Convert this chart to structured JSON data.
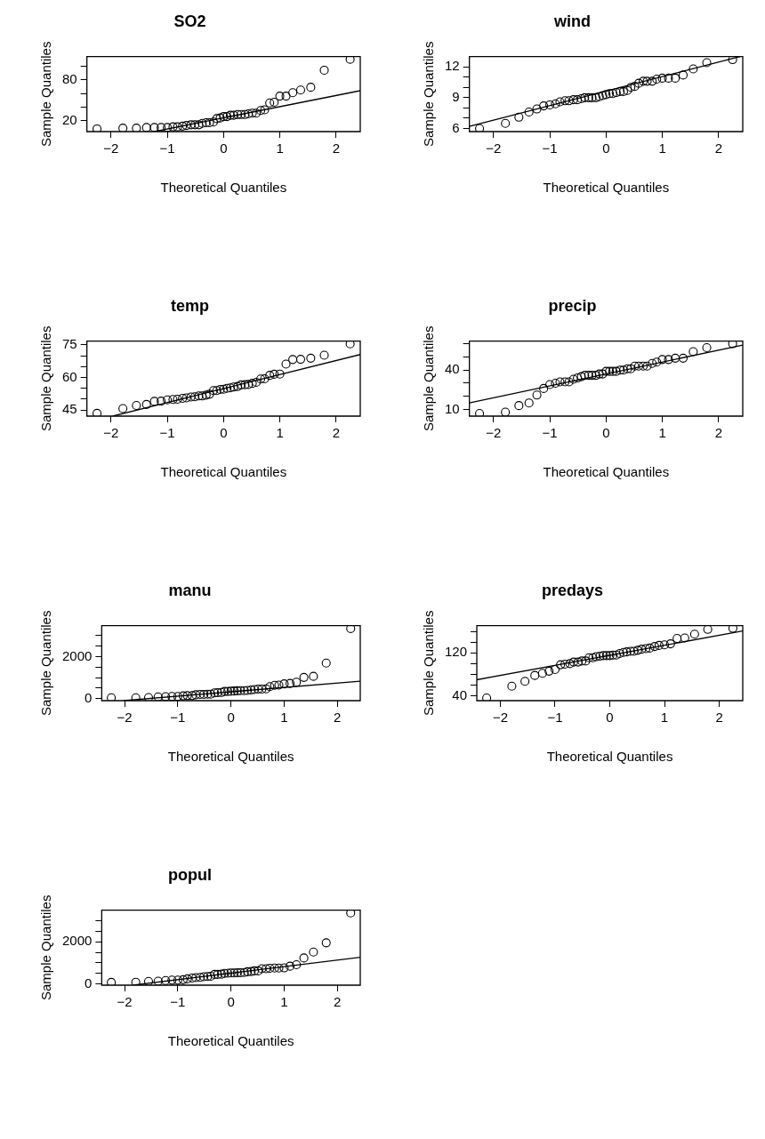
{
  "chart_data": [
    {
      "type": "scatter",
      "title": "SO2",
      "xlabel": "Theoretical Quantiles",
      "ylabel": "Sample Quantiles",
      "xlim": [
        -2.43,
        2.43
      ],
      "ylim": [
        4,
        114
      ],
      "xticks": [
        -2,
        -1,
        0,
        1,
        2
      ],
      "yticks": [
        20,
        {
          "value": 40,
          "label": null
        },
        {
          "value": 60,
          "label": null
        },
        80,
        {
          "value": 100,
          "label": null
        }
      ],
      "x": [
        -2.25,
        -1.79,
        -1.55,
        -1.37,
        -1.23,
        -1.11,
        -1.0,
        -0.9,
        -0.82,
        -0.73,
        -0.66,
        -0.58,
        -0.51,
        -0.44,
        -0.38,
        -0.31,
        -0.25,
        -0.18,
        -0.12,
        -0.06,
        0,
        0.06,
        0.12,
        0.18,
        0.25,
        0.31,
        0.38,
        0.44,
        0.51,
        0.58,
        0.66,
        0.73,
        0.82,
        0.9,
        1.0,
        1.11,
        1.23,
        1.37,
        1.55,
        1.79,
        2.25
      ],
      "series": [
        {
          "marker": "circle",
          "color": "#000000",
          "values": [
            8,
            9,
            9,
            10,
            10,
            10,
            10,
            11,
            11,
            12,
            13,
            14,
            14,
            14,
            16,
            17,
            17,
            18,
            23,
            24,
            26,
            26,
            28,
            28,
            29,
            29,
            29,
            30,
            31,
            31,
            35,
            36,
            46,
            47,
            56,
            56,
            61,
            65,
            69,
            94,
            110
          ]
        },
        {
          "type": "line",
          "color": "#000000",
          "x": [
            -1.23,
            2.43
          ],
          "values": [
            4,
            64
          ]
        }
      ]
    },
    {
      "type": "scatter",
      "title": "wind",
      "xlabel": "Theoretical Quantiles",
      "ylabel": "Sample Quantiles",
      "xlim": [
        -2.43,
        2.43
      ],
      "ylim": [
        5.7,
        13.0
      ],
      "xticks": [
        -2,
        -1,
        0,
        1,
        2
      ],
      "yticks": [
        6,
        {
          "value": 7,
          "label": null
        },
        {
          "value": 8,
          "label": null
        },
        9,
        {
          "value": 10,
          "label": null
        },
        {
          "value": 11,
          "label": null
        },
        12
      ],
      "x": [
        -2.25,
        -1.79,
        -1.55,
        -1.37,
        -1.23,
        -1.11,
        -1.0,
        -0.9,
        -0.82,
        -0.73,
        -0.66,
        -0.58,
        -0.51,
        -0.44,
        -0.38,
        -0.31,
        -0.25,
        -0.18,
        -0.12,
        -0.06,
        0,
        0.06,
        0.12,
        0.18,
        0.25,
        0.31,
        0.38,
        0.44,
        0.51,
        0.58,
        0.66,
        0.73,
        0.82,
        0.9,
        1.0,
        1.11,
        1.23,
        1.37,
        1.55,
        1.79,
        2.25
      ],
      "series": [
        {
          "marker": "circle",
          "color": "#000000",
          "values": [
            6.0,
            6.5,
            7.1,
            7.6,
            7.9,
            8.2,
            8.3,
            8.4,
            8.6,
            8.7,
            8.7,
            8.8,
            8.8,
            8.9,
            9.0,
            9.0,
            9.0,
            9.0,
            9.1,
            9.2,
            9.3,
            9.4,
            9.4,
            9.5,
            9.6,
            9.6,
            9.7,
            10.0,
            10.1,
            10.4,
            10.6,
            10.6,
            10.6,
            10.8,
            10.9,
            10.9,
            10.9,
            11.2,
            11.8,
            12.4,
            12.7
          ]
        },
        {
          "type": "line",
          "color": "#000000",
          "x": [
            -2.43,
            2.38
          ],
          "values": [
            6.2,
            13.0
          ]
        }
      ]
    },
    {
      "type": "scatter",
      "title": "temp",
      "xlabel": "Theoretical Quantiles",
      "ylabel": "Sample Quantiles",
      "xlim": [
        -2.43,
        2.43
      ],
      "ylim": [
        42.2,
        76.8
      ],
      "xticks": [
        -2,
        -1,
        0,
        1,
        2
      ],
      "yticks": [
        45,
        {
          "value": 50,
          "label": null
        },
        {
          "value": 55,
          "label": null
        },
        60,
        {
          "value": 65,
          "label": null
        },
        {
          "value": 70,
          "label": null
        },
        75
      ],
      "x": [
        -2.25,
        -1.79,
        -1.55,
        -1.37,
        -1.23,
        -1.11,
        -1.0,
        -0.9,
        -0.82,
        -0.73,
        -0.66,
        -0.58,
        -0.51,
        -0.44,
        -0.38,
        -0.31,
        -0.25,
        -0.18,
        -0.12,
        -0.06,
        0,
        0.06,
        0.12,
        0.18,
        0.25,
        0.31,
        0.38,
        0.44,
        0.51,
        0.58,
        0.66,
        0.73,
        0.82,
        0.9,
        1.0,
        1.11,
        1.23,
        1.37,
        1.55,
        1.79,
        2.25
      ],
      "series": [
        {
          "marker": "circle",
          "color": "#000000",
          "values": [
            43.5,
            45.7,
            47.1,
            47.6,
            49.0,
            49.1,
            49.7,
            49.9,
            50.0,
            50.4,
            50.6,
            51.0,
            51.1,
            51.5,
            51.5,
            51.9,
            52.3,
            54.0,
            54.0,
            54.5,
            54.6,
            55.0,
            55.2,
            55.6,
            55.9,
            56.6,
            56.7,
            56.8,
            57.3,
            57.8,
            59.3,
            59.4,
            61.0,
            61.5,
            61.6,
            66.2,
            68.3,
            68.4,
            68.9,
            70.3,
            75.5
          ]
        },
        {
          "type": "line",
          "color": "#000000",
          "x": [
            -1.97,
            2.43
          ],
          "values": [
            42.2,
            70.6
          ]
        }
      ]
    },
    {
      "type": "scatter",
      "title": "precip",
      "xlabel": "Theoretical Quantiles",
      "ylabel": "Sample Quantiles",
      "xlim": [
        -2.43,
        2.43
      ],
      "ylim": [
        5,
        62
      ],
      "xticks": [
        -2,
        -1,
        0,
        1,
        2
      ],
      "yticks": [
        10,
        {
          "value": 20,
          "label": null
        },
        {
          "value": 30,
          "label": null
        },
        40,
        {
          "value": 50,
          "label": null
        },
        {
          "value": 60,
          "label": null
        }
      ],
      "x": [
        -2.25,
        -1.79,
        -1.55,
        -1.37,
        -1.23,
        -1.11,
        -1.0,
        -0.9,
        -0.82,
        -0.73,
        -0.66,
        -0.58,
        -0.51,
        -0.44,
        -0.38,
        -0.31,
        -0.25,
        -0.18,
        -0.12,
        -0.06,
        0,
        0.06,
        0.12,
        0.18,
        0.25,
        0.31,
        0.38,
        0.44,
        0.51,
        0.58,
        0.66,
        0.73,
        0.82,
        0.9,
        1.0,
        1.11,
        1.23,
        1.37,
        1.55,
        1.79,
        2.25
      ],
      "series": [
        {
          "marker": "circle",
          "color": "#000000",
          "values": [
            7,
            8,
            13,
            15,
            21,
            26,
            29,
            30,
            31,
            31,
            31,
            33,
            34,
            35,
            36,
            36,
            36,
            36,
            37,
            37,
            39,
            39,
            39,
            39,
            40,
            40,
            41,
            41,
            43,
            43,
            43,
            43,
            45,
            46,
            48,
            48,
            49,
            49,
            54,
            57,
            60
          ]
        },
        {
          "type": "line",
          "color": "#000000",
          "x": [
            -2.43,
            2.43
          ],
          "values": [
            15,
            59
          ]
        }
      ]
    },
    {
      "type": "scatter",
      "title": "manu",
      "xlabel": "Theoretical Quantiles",
      "ylabel": "Sample Quantiles",
      "xlim": [
        -2.43,
        2.43
      ],
      "ylim": [
        -100,
        3480
      ],
      "xticks": [
        -2,
        -1,
        0,
        1,
        2
      ],
      "yticks": [
        0,
        {
          "value": 500,
          "label": null
        },
        {
          "value": 1000,
          "label": null
        },
        {
          "value": 1500,
          "label": null
        },
        2000,
        {
          "value": 2500,
          "label": null
        },
        {
          "value": 3000,
          "label": null
        }
      ],
      "x": [
        -2.25,
        -1.79,
        -1.55,
        -1.37,
        -1.23,
        -1.11,
        -1.0,
        -0.9,
        -0.82,
        -0.73,
        -0.66,
        -0.58,
        -0.51,
        -0.44,
        -0.38,
        -0.31,
        -0.25,
        -0.18,
        -0.12,
        -0.06,
        0,
        0.06,
        0.12,
        0.18,
        0.25,
        0.31,
        0.38,
        0.44,
        0.51,
        0.58,
        0.66,
        0.73,
        0.82,
        0.9,
        1.0,
        1.11,
        1.23,
        1.37,
        1.55,
        1.79,
        2.25
      ],
      "series": [
        {
          "marker": "circle",
          "color": "#000000",
          "values": [
            40,
            40,
            50,
            80,
            90,
            100,
            100,
            130,
            140,
            140,
            180,
            200,
            200,
            210,
            210,
            270,
            280,
            290,
            340,
            340,
            350,
            360,
            370,
            380,
            380,
            390,
            410,
            430,
            450,
            450,
            460,
            570,
            630,
            640,
            700,
            720,
            780,
            1010,
            1060,
            1690,
            3340
          ]
        },
        {
          "type": "line",
          "color": "#000000",
          "x": [
            -2.02,
            2.43
          ],
          "values": [
            -100,
            830
          ]
        }
      ]
    },
    {
      "type": "scatter",
      "title": "predays",
      "xlabel": "Theoretical Quantiles",
      "ylabel": "Sample Quantiles",
      "xlim": [
        -2.43,
        2.43
      ],
      "ylim": [
        31,
        171
      ],
      "xticks": [
        -2,
        -1,
        0,
        1,
        2
      ],
      "yticks": [
        40,
        {
          "value": 60,
          "label": null
        },
        {
          "value": 80,
          "label": null
        },
        {
          "value": 100,
          "label": null
        },
        120,
        {
          "value": 140,
          "label": null
        },
        {
          "value": 160,
          "label": null
        }
      ],
      "x": [
        -2.25,
        -1.79,
        -1.55,
        -1.37,
        -1.23,
        -1.11,
        -1.0,
        -0.9,
        -0.82,
        -0.73,
        -0.66,
        -0.58,
        -0.51,
        -0.44,
        -0.38,
        -0.31,
        -0.25,
        -0.18,
        -0.12,
        -0.06,
        0,
        0.06,
        0.12,
        0.18,
        0.25,
        0.31,
        0.38,
        0.44,
        0.51,
        0.58,
        0.66,
        0.73,
        0.82,
        0.9,
        1.0,
        1.11,
        1.23,
        1.37,
        1.55,
        1.79,
        2.25
      ],
      "series": [
        {
          "marker": "circle",
          "color": "#000000",
          "values": [
            36,
            58,
            67,
            78,
            82,
            86,
            89,
            98,
            99,
            100,
            103,
            103,
            105,
            105,
            111,
            111,
            113,
            114,
            115,
            115,
            115,
            116,
            116,
            119,
            121,
            122,
            123,
            123,
            125,
            127,
            128,
            129,
            132,
            134,
            135,
            137,
            147,
            148,
            155,
            164,
            166
          ]
        },
        {
          "type": "line",
          "color": "#000000",
          "x": [
            -2.43,
            2.43
          ],
          "values": [
            70,
            161
          ]
        }
      ]
    },
    {
      "type": "scatter",
      "title": "popul",
      "xlabel": "Theoretical Quantiles",
      "ylabel": "Sample Quantiles",
      "xlim": [
        -2.43,
        2.43
      ],
      "ylim": [
        -60,
        3500
      ],
      "xticks": [
        -2,
        -1,
        0,
        1,
        2
      ],
      "yticks": [
        0,
        {
          "value": 500,
          "label": null
        },
        {
          "value": 1000,
          "label": null
        },
        {
          "value": 1500,
          "label": null
        },
        2000,
        {
          "value": 2500,
          "label": null
        },
        {
          "value": 3000,
          "label": null
        }
      ],
      "x": [
        -2.25,
        -1.79,
        -1.55,
        -1.37,
        -1.23,
        -1.11,
        -1.0,
        -0.9,
        -0.82,
        -0.73,
        -0.66,
        -0.58,
        -0.51,
        -0.44,
        -0.38,
        -0.31,
        -0.25,
        -0.18,
        -0.12,
        -0.06,
        0,
        0.06,
        0.12,
        0.18,
        0.25,
        0.31,
        0.38,
        0.44,
        0.51,
        0.58,
        0.66,
        0.73,
        0.82,
        0.9,
        1.0,
        1.11,
        1.23,
        1.37,
        1.55,
        1.79,
        2.25
      ],
      "series": [
        {
          "marker": "circle",
          "color": "#000000",
          "values": [
            70,
            80,
            120,
            130,
            160,
            180,
            180,
            200,
            240,
            280,
            300,
            310,
            340,
            350,
            360,
            450,
            450,
            460,
            500,
            510,
            520,
            520,
            530,
            530,
            540,
            580,
            590,
            620,
            620,
            720,
            720,
            740,
            750,
            750,
            760,
            840,
            910,
            1230,
            1510,
            1950,
            3370
          ]
        },
        {
          "type": "line",
          "color": "#000000",
          "x": [
            -1.84,
            2.43
          ],
          "values": [
            -60,
            1260
          ]
        }
      ]
    }
  ]
}
